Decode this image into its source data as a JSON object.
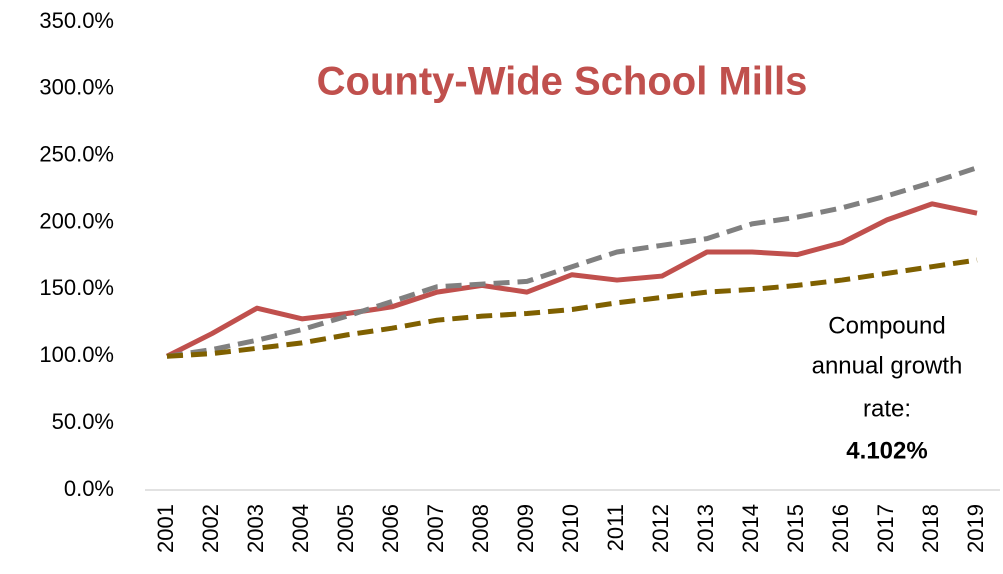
{
  "chart_data": {
    "type": "line",
    "title": "County-Wide School Mills",
    "x": [
      "2001",
      "2002",
      "2003",
      "2004",
      "2005",
      "2006",
      "2007",
      "2008",
      "2009",
      "2010",
      "2011",
      "2012",
      "2013",
      "2014",
      "2015",
      "2016",
      "2017",
      "2018",
      "2019"
    ],
    "series": [
      {
        "color": "#c0504d",
        "dash": false,
        "values": [
          100,
          117,
          136,
          128,
          132,
          137,
          148,
          153,
          148,
          161,
          157,
          160,
          178,
          178,
          176,
          185,
          202,
          214,
          207
        ]
      },
      {
        "color": "#808080",
        "dash": true,
        "values": [
          100,
          105,
          112,
          120,
          130,
          141,
          152,
          154,
          156,
          167,
          178,
          183,
          188,
          199,
          204,
          211,
          220,
          230,
          241
        ]
      },
      {
        "color": "#7f6000",
        "dash": true,
        "values": [
          100,
          102,
          106,
          110,
          116,
          121,
          127,
          130,
          132,
          135,
          140,
          144,
          148,
          150,
          153,
          157,
          162,
          167,
          172
        ]
      }
    ],
    "ylim": [
      0,
      350
    ],
    "yticks": [
      {
        "value": 0,
        "label": "0.0%"
      },
      {
        "value": 50,
        "label": "50.0%"
      },
      {
        "value": 100,
        "label": "100.0%"
      },
      {
        "value": 150,
        "label": "150.0%"
      },
      {
        "value": 200,
        "label": "200.0%"
      },
      {
        "value": 250,
        "label": "250.0%"
      },
      {
        "value": 300,
        "label": "300.0%"
      },
      {
        "value": 350,
        "label": "350.0%"
      }
    ],
    "annotation": {
      "lines": [
        "Compound",
        "annual growth",
        "rate:"
      ],
      "value": "4.102%"
    }
  }
}
